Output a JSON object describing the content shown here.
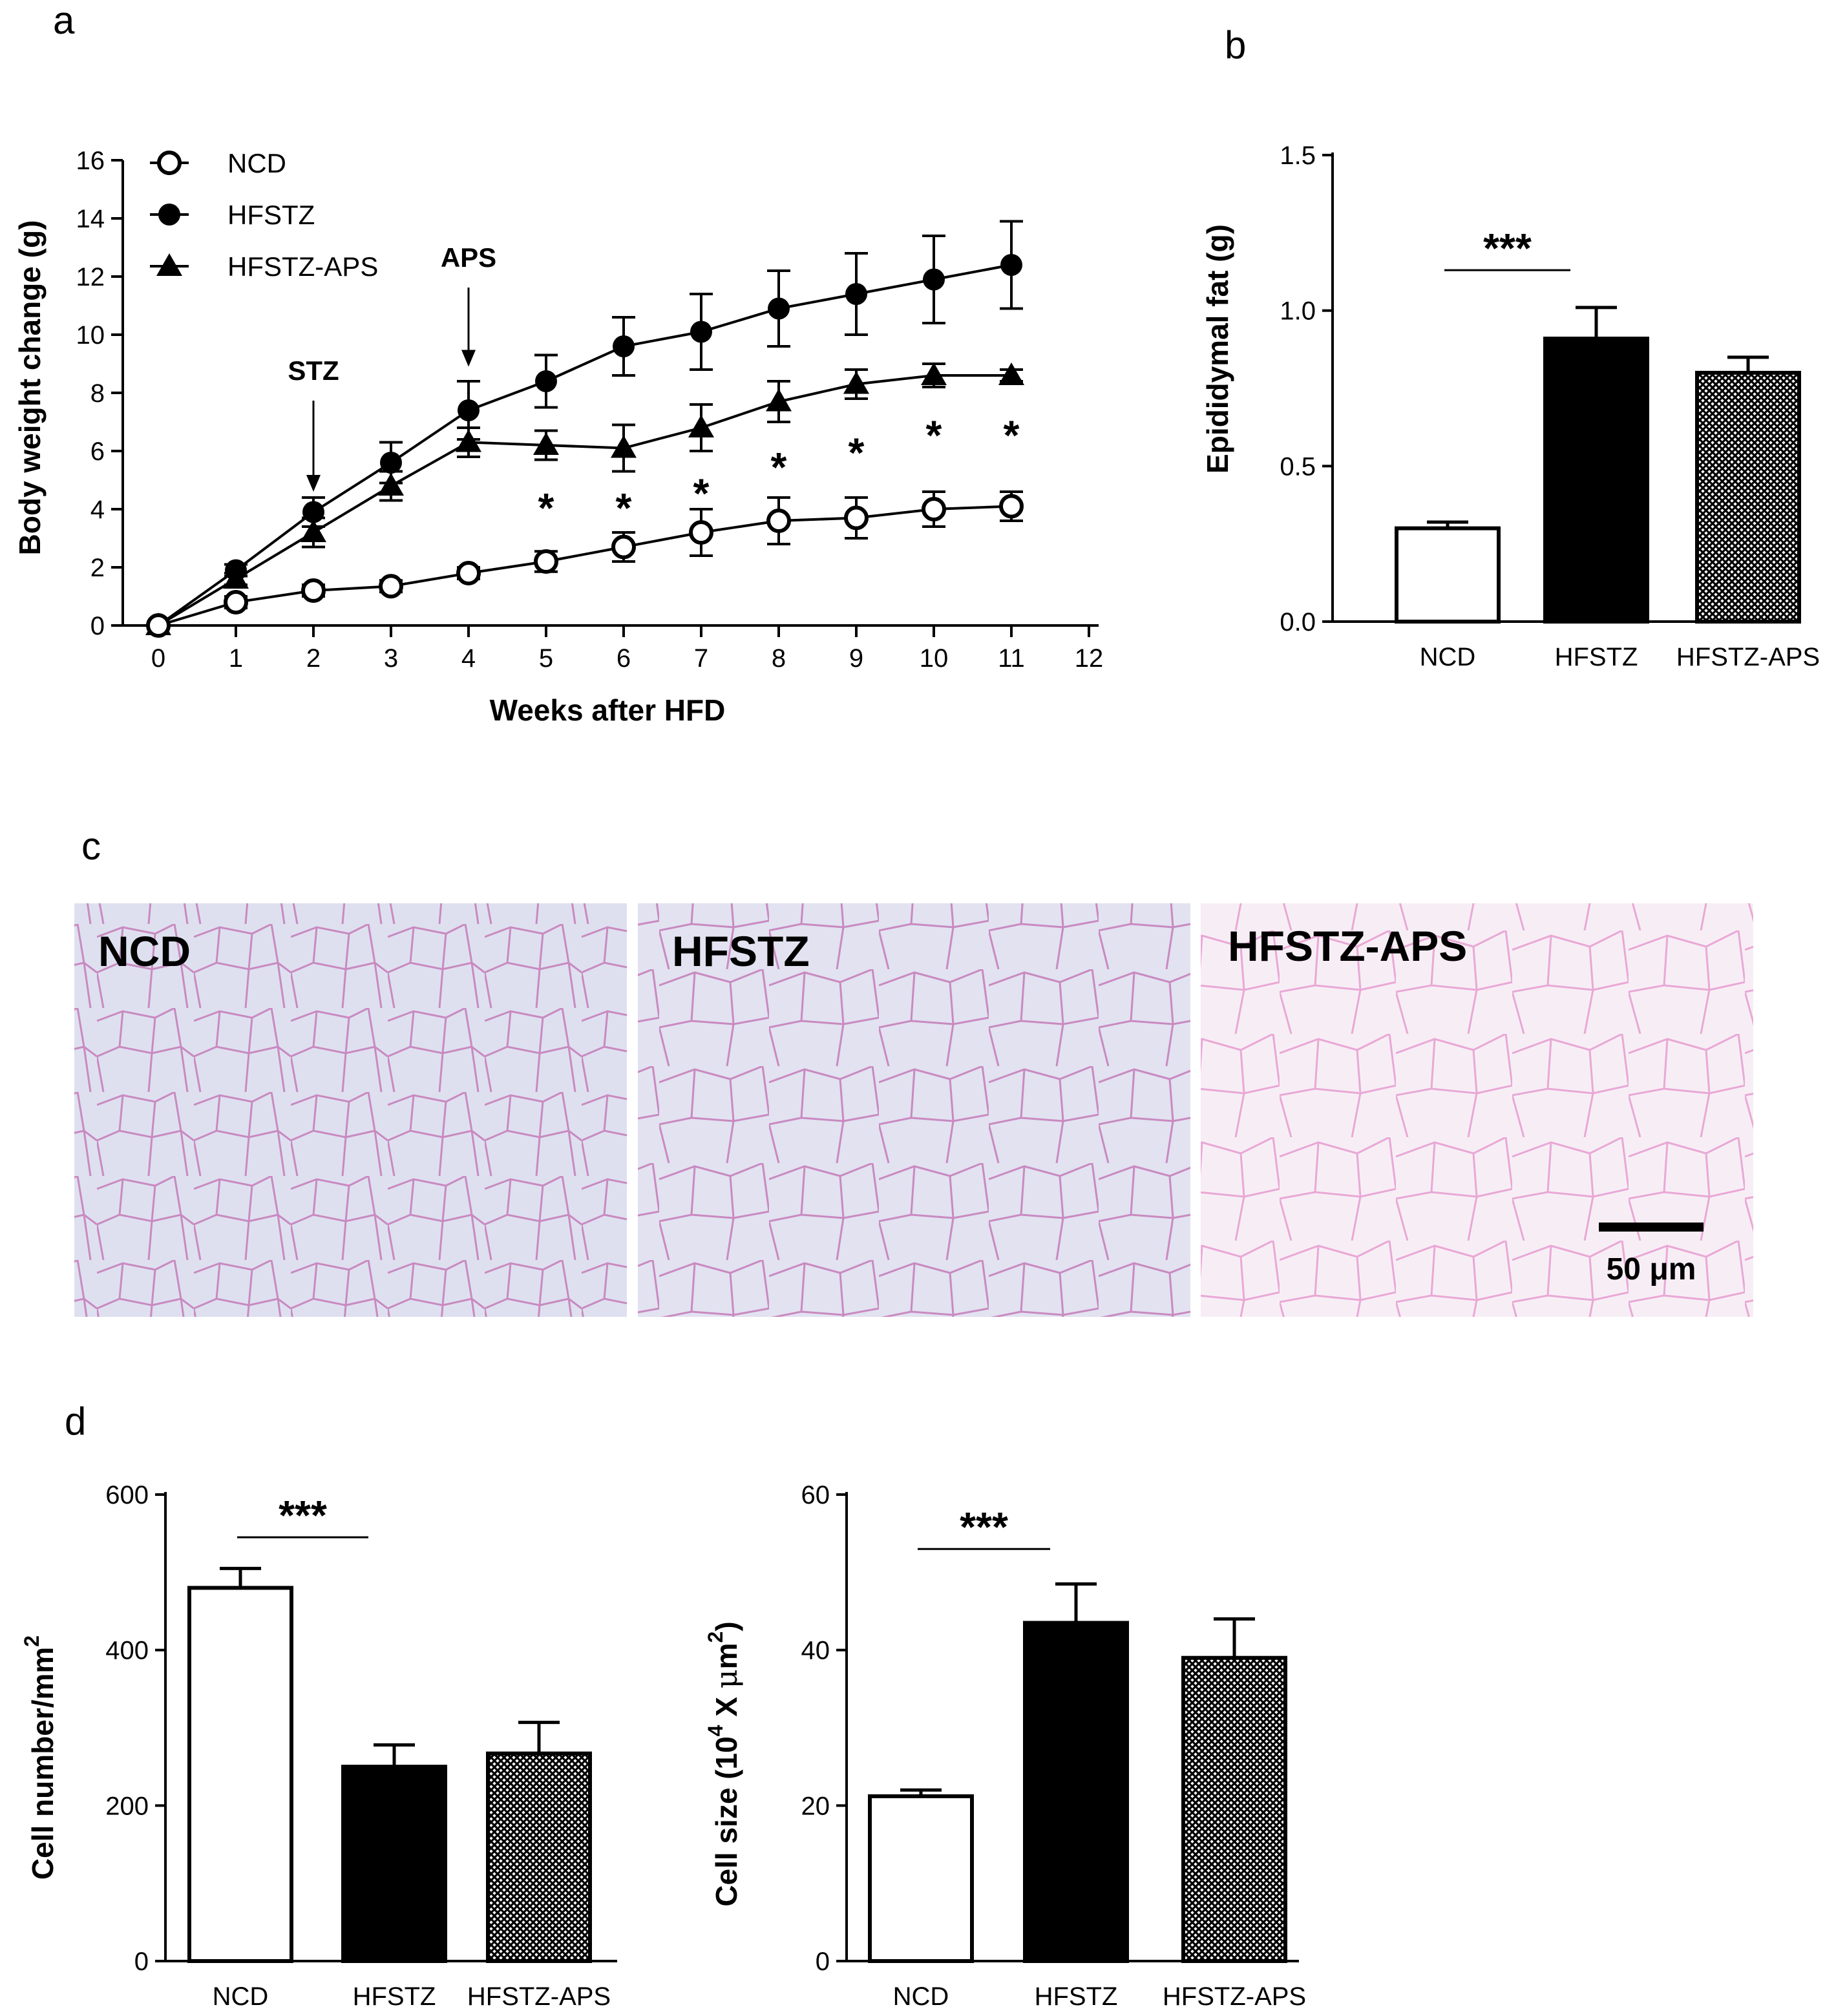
{
  "panel_letters": {
    "a": "a",
    "b": "b",
    "c": "c",
    "d": "d"
  },
  "chart_data": [
    {
      "panel": "a",
      "type": "line",
      "xlabel": "Weeks after HFD",
      "ylabel": "Body weight change (g)",
      "xlim": [
        0,
        12
      ],
      "ylim": [
        0,
        16
      ],
      "xticks": [
        0,
        1,
        2,
        3,
        4,
        5,
        6,
        7,
        8,
        9,
        10,
        11,
        12
      ],
      "yticks": [
        0,
        2,
        4,
        6,
        8,
        10,
        12,
        14,
        16
      ],
      "legend_position": "top-left",
      "series": [
        {
          "name": "NCD",
          "marker": "open-circle",
          "x": [
            0,
            1,
            2,
            3,
            4,
            5,
            6,
            7,
            8,
            9,
            10,
            11
          ],
          "y": [
            0,
            0.8,
            1.2,
            1.35,
            1.8,
            2.2,
            2.7,
            3.2,
            3.6,
            3.7,
            4.0,
            4.1
          ],
          "err": [
            0.1,
            0.2,
            0.2,
            0.2,
            0.2,
            0.35,
            0.5,
            0.8,
            0.8,
            0.7,
            0.6,
            0.5
          ]
        },
        {
          "name": "HFSTZ",
          "marker": "filled-circle",
          "x": [
            0,
            1,
            2,
            3,
            4,
            5,
            6,
            7,
            8,
            9,
            10,
            11
          ],
          "y": [
            0,
            1.9,
            3.9,
            5.6,
            7.4,
            8.4,
            9.6,
            10.1,
            10.9,
            11.4,
            11.9,
            12.4
          ],
          "err": [
            0.1,
            0.2,
            0.5,
            0.7,
            1.0,
            0.9,
            1.0,
            1.3,
            1.3,
            1.4,
            1.5,
            1.5
          ]
        },
        {
          "name": "HFSTZ-APS",
          "marker": "filled-triangle",
          "x": [
            0,
            1,
            2,
            3,
            4,
            5,
            6,
            7,
            8,
            9,
            10,
            11
          ],
          "y": [
            0,
            1.6,
            3.2,
            4.8,
            6.3,
            6.2,
            6.1,
            6.8,
            7.7,
            8.3,
            8.6,
            8.6
          ],
          "err": [
            0.1,
            0.2,
            0.5,
            0.5,
            0.5,
            0.5,
            0.8,
            0.8,
            0.7,
            0.5,
            0.4,
            0.2
          ]
        }
      ],
      "annotations": [
        {
          "text": "STZ",
          "x": 2,
          "arrow_to_y": 4.6
        },
        {
          "text": "APS",
          "x": 4,
          "arrow_to_y": 8.9
        }
      ],
      "significance": [
        {
          "x": 5,
          "y": 4.4,
          "text": "*"
        },
        {
          "x": 6,
          "y": 4.4,
          "text": "*"
        },
        {
          "x": 7,
          "y": 4.9,
          "text": "*"
        },
        {
          "x": 8,
          "y": 5.8,
          "text": "*"
        },
        {
          "x": 9,
          "y": 6.3,
          "text": "*"
        },
        {
          "x": 10,
          "y": 6.9,
          "text": "*"
        },
        {
          "x": 11,
          "y": 6.9,
          "text": "*"
        }
      ]
    },
    {
      "panel": "b",
      "type": "bar",
      "ylabel": "Epididymal fat (g)",
      "categories": [
        "NCD",
        "HFSTZ",
        "HFSTZ-APS"
      ],
      "values": [
        0.3,
        0.91,
        0.8
      ],
      "errors": [
        0.02,
        0.1,
        0.05
      ],
      "fills": [
        "open",
        "solid",
        "hatched"
      ],
      "ylim": [
        0,
        1.5
      ],
      "yticks": [
        "0.0",
        "0.5",
        "1.0",
        "1.5"
      ],
      "significance": [
        {
          "from": 0,
          "to": 1,
          "text": "***",
          "y": 1.13
        }
      ]
    },
    {
      "panel": "d-left",
      "type": "bar",
      "ylabel_main": "Cell number/mm",
      "ylabel_sup": "2",
      "categories": [
        "NCD",
        "HFSTZ",
        "HFSTZ-APS"
      ],
      "values": [
        480,
        250,
        267
      ],
      "errors": [
        25,
        28,
        40
      ],
      "fills": [
        "open",
        "solid",
        "hatched"
      ],
      "ylim": [
        0,
        600
      ],
      "yticks": [
        "0",
        "200",
        "400",
        "600"
      ],
      "significance": [
        {
          "from": 0,
          "to": 1,
          "text": "***",
          "y": 545
        }
      ]
    },
    {
      "panel": "d-right",
      "type": "bar",
      "ylabel_parts": [
        "Cell size (10",
        "4",
        " X ",
        "μ",
        "m",
        "2",
        ")"
      ],
      "categories": [
        "NCD",
        "HFSTZ",
        "HFSTZ-APS"
      ],
      "values": [
        21.2,
        43.5,
        39.0
      ],
      "errors": [
        0.8,
        5.0,
        5.0
      ],
      "fills": [
        "open",
        "solid",
        "hatched"
      ],
      "ylim": [
        0,
        60
      ],
      "yticks": [
        "0",
        "20",
        "40",
        "60"
      ],
      "significance": [
        {
          "from": 0,
          "to": 1,
          "text": "***",
          "y": 53
        }
      ]
    }
  ],
  "micrographs": [
    {
      "label": "NCD"
    },
    {
      "label": "HFSTZ"
    },
    {
      "label": "HFSTZ-APS",
      "scale_bar": "50 μm"
    }
  ]
}
